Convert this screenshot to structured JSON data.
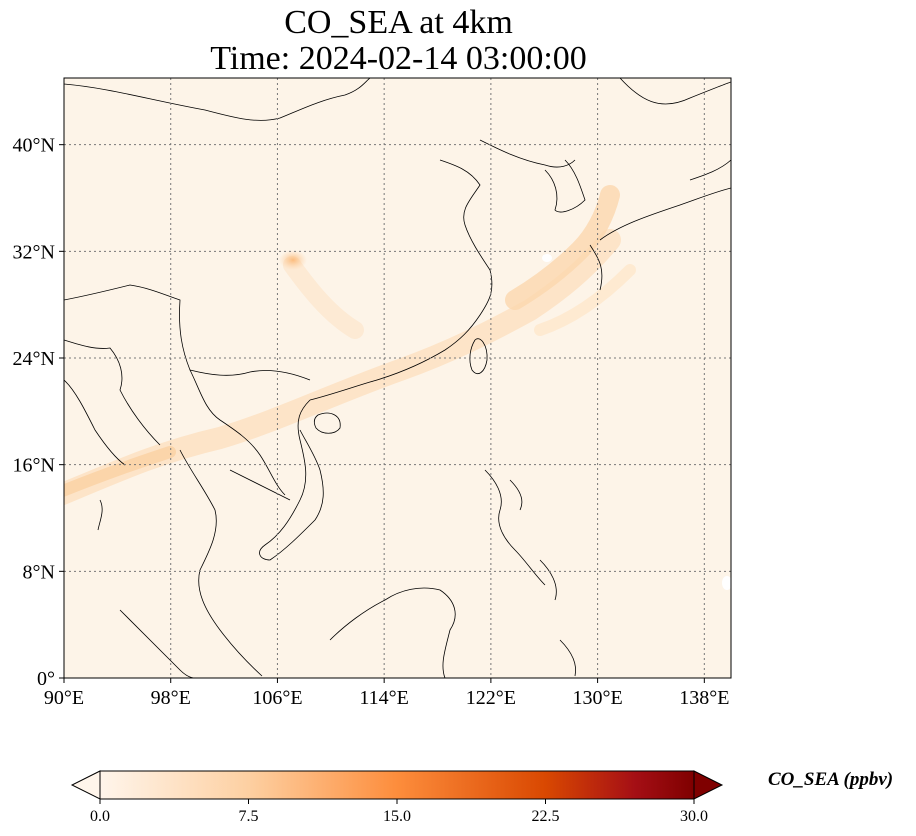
{
  "map": {
    "title_line_1": "CO_SEA at 4km",
    "title_line_2": "Time: 2024-02-14 03:00:00",
    "extent": {
      "lon_min": 90,
      "lon_max": 140,
      "lat_min": 0,
      "lat_max": 45
    },
    "lon_ticks": [
      {
        "value": 90,
        "label": "90°E"
      },
      {
        "value": 98,
        "label": "98°E"
      },
      {
        "value": 106,
        "label": "106°E"
      },
      {
        "value": 114,
        "label": "114°E"
      },
      {
        "value": 122,
        "label": "122°E"
      },
      {
        "value": 130,
        "label": "130°E"
      },
      {
        "value": 138,
        "label": "138°E"
      }
    ],
    "lat_ticks": [
      {
        "value": 0,
        "label": "0°"
      },
      {
        "value": 8,
        "label": "8°N"
      },
      {
        "value": 16,
        "label": "16°N"
      },
      {
        "value": 24,
        "label": "24°N"
      },
      {
        "value": 32,
        "label": "32°N"
      },
      {
        "value": 40,
        "label": "40°N"
      }
    ],
    "gridlines": true
  },
  "colorbar": {
    "label": "CO_SEA (ppbv)",
    "min": 0,
    "max": 30,
    "extend": "both",
    "ticks": [
      {
        "value": 0,
        "label": "0.0"
      },
      {
        "value": 7.5,
        "label": "7.5"
      },
      {
        "value": 15,
        "label": "15.0"
      },
      {
        "value": 22.5,
        "label": "22.5"
      },
      {
        "value": 30,
        "label": "30.0"
      }
    ],
    "colors": [
      "#fff5eb",
      "#fdd0a2",
      "#fd8d3c",
      "#d94801",
      "#a50f15",
      "#7f0000"
    ]
  }
}
